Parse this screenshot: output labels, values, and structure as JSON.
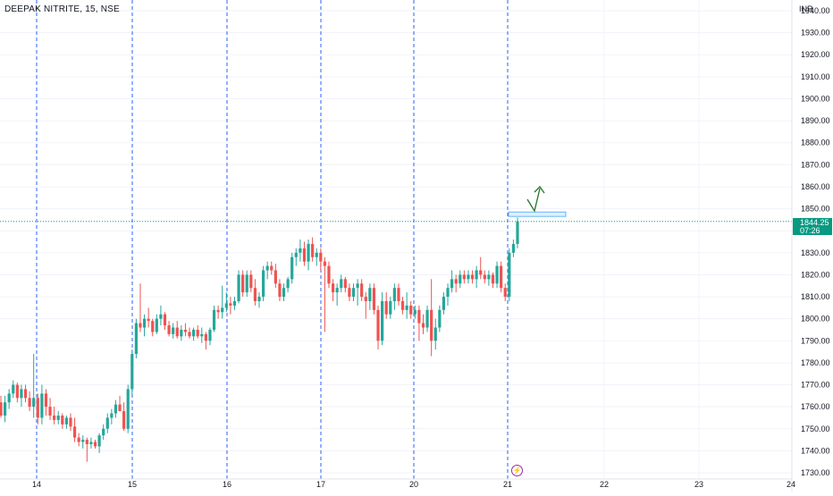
{
  "header": {
    "symbol": "DEEPAK NITRITE, 15, NSE",
    "currency": "INR"
  },
  "last_price": {
    "value": "1844.25",
    "countdown": "07:26"
  },
  "colors": {
    "up": "#26a69a",
    "down": "#ef5350",
    "accent": "#089981",
    "session_line": "#2962ff",
    "annotation": "#2e7d32"
  },
  "icons": [
    "lightning-icon"
  ],
  "chart_data": {
    "type": "candlestick",
    "title": "DEEPAK NITRITE, 15, NSE",
    "ylabel": "INR",
    "ylim": [
      1725,
      1945
    ],
    "y_ticks": [
      1730,
      1740,
      1750,
      1760,
      1770,
      1780,
      1790,
      1800,
      1810,
      1820,
      1830,
      1840,
      1850,
      1860,
      1870,
      1880,
      1890,
      1900,
      1910,
      1920,
      1930,
      1940
    ],
    "x_ticks": [
      "14",
      "15",
      "16",
      "17",
      "20",
      "21",
      "22",
      "23",
      "24"
    ],
    "session_breaks": [
      "14",
      "15",
      "16",
      "17",
      "20",
      "21"
    ],
    "last_price": 1844.25,
    "resistance_zone": [
      1846.5,
      1848.5
    ],
    "annotation": "green upward zig-zag arrow above resistance zone",
    "candles": [
      [
        1762,
        1765,
        1755,
        1756
      ],
      [
        1756,
        1765,
        1753,
        1762
      ],
      [
        1762,
        1768,
        1759,
        1766
      ],
      [
        1766,
        1772,
        1764,
        1770
      ],
      [
        1770,
        1771,
        1762,
        1764
      ],
      [
        1764,
        1770,
        1760,
        1768
      ],
      [
        1768,
        1770,
        1762,
        1764
      ],
      [
        1764,
        1767,
        1758,
        1760
      ],
      [
        1760,
        1784,
        1755,
        1764
      ],
      [
        1764,
        1766,
        1752,
        1755
      ],
      [
        1755,
        1770,
        1752,
        1766
      ],
      [
        1766,
        1768,
        1756,
        1760
      ],
      [
        1760,
        1764,
        1754,
        1756
      ],
      [
        1756,
        1760,
        1752,
        1754
      ],
      [
        1754,
        1758,
        1752,
        1756
      ],
      [
        1756,
        1757,
        1750,
        1752
      ],
      [
        1752,
        1756,
        1750,
        1755
      ],
      [
        1755,
        1757,
        1749,
        1751
      ],
      [
        1751,
        1755,
        1744,
        1746
      ],
      [
        1746,
        1748,
        1742,
        1744
      ],
      [
        1744,
        1747,
        1741,
        1745
      ],
      [
        1745,
        1746,
        1735,
        1743
      ],
      [
        1743,
        1746,
        1741,
        1744
      ],
      [
        1744,
        1745,
        1741,
        1742
      ],
      [
        1742,
        1748,
        1739,
        1747
      ],
      [
        1747,
        1752,
        1745,
        1750
      ],
      [
        1750,
        1757,
        1748,
        1755
      ],
      [
        1755,
        1759,
        1752,
        1757
      ],
      [
        1757,
        1763,
        1755,
        1761
      ],
      [
        1761,
        1765,
        1758,
        1758
      ],
      [
        1758,
        1762,
        1749,
        1750
      ],
      [
        1750,
        1770,
        1748,
        1768
      ],
      [
        1768,
        1786,
        1765,
        1784
      ],
      [
        1784,
        1800,
        1782,
        1798
      ],
      [
        1798,
        1816,
        1794,
        1796
      ],
      [
        1796,
        1802,
        1792,
        1800
      ],
      [
        1800,
        1805,
        1796,
        1799
      ],
      [
        1799,
        1800,
        1792,
        1794
      ],
      [
        1794,
        1802,
        1793,
        1800
      ],
      [
        1800,
        1806,
        1797,
        1802
      ],
      [
        1802,
        1803,
        1795,
        1797
      ],
      [
        1797,
        1799,
        1792,
        1793
      ],
      [
        1793,
        1798,
        1791,
        1796
      ],
      [
        1796,
        1799,
        1791,
        1792
      ],
      [
        1792,
        1797,
        1790,
        1795
      ],
      [
        1795,
        1798,
        1792,
        1794
      ],
      [
        1794,
        1796,
        1791,
        1792
      ],
      [
        1792,
        1796,
        1790,
        1795
      ],
      [
        1795,
        1797,
        1791,
        1792
      ],
      [
        1792,
        1796,
        1789,
        1793
      ],
      [
        1793,
        1794,
        1786,
        1790
      ],
      [
        1790,
        1796,
        1788,
        1795
      ],
      [
        1795,
        1806,
        1794,
        1804
      ],
      [
        1804,
        1806,
        1800,
        1803
      ],
      [
        1803,
        1815,
        1800,
        1805
      ],
      [
        1805,
        1812,
        1803,
        1807
      ],
      [
        1807,
        1810,
        1802,
        1806
      ],
      [
        1806,
        1810,
        1804,
        1808
      ],
      [
        1808,
        1822,
        1807,
        1820
      ],
      [
        1820,
        1822,
        1810,
        1812
      ],
      [
        1812,
        1822,
        1810,
        1820
      ],
      [
        1820,
        1822,
        1812,
        1814
      ],
      [
        1814,
        1818,
        1806,
        1808
      ],
      [
        1808,
        1812,
        1805,
        1810
      ],
      [
        1810,
        1824,
        1808,
        1822
      ],
      [
        1822,
        1826,
        1818,
        1824
      ],
      [
        1824,
        1826,
        1820,
        1822
      ],
      [
        1822,
        1825,
        1814,
        1816
      ],
      [
        1816,
        1818,
        1808,
        1810
      ],
      [
        1810,
        1816,
        1808,
        1814
      ],
      [
        1814,
        1819,
        1812,
        1818
      ],
      [
        1818,
        1830,
        1816,
        1828
      ],
      [
        1828,
        1832,
        1824,
        1830
      ],
      [
        1830,
        1836,
        1826,
        1832
      ],
      [
        1832,
        1835,
        1824,
        1826
      ],
      [
        1826,
        1836,
        1822,
        1834
      ],
      [
        1834,
        1837,
        1826,
        1828
      ],
      [
        1828,
        1832,
        1824,
        1830
      ],
      [
        1830,
        1832,
        1822,
        1826
      ],
      [
        1826,
        1828,
        1794,
        1824
      ],
      [
        1824,
        1826,
        1814,
        1816
      ],
      [
        1816,
        1818,
        1808,
        1812
      ],
      [
        1812,
        1816,
        1806,
        1814
      ],
      [
        1814,
        1820,
        1812,
        1818
      ],
      [
        1818,
        1819,
        1812,
        1814
      ],
      [
        1814,
        1816,
        1808,
        1810
      ],
      [
        1810,
        1816,
        1808,
        1814
      ],
      [
        1814,
        1818,
        1806,
        1816
      ],
      [
        1816,
        1818,
        1808,
        1810
      ],
      [
        1810,
        1812,
        1800,
        1808
      ],
      [
        1808,
        1816,
        1804,
        1814
      ],
      [
        1814,
        1816,
        1802,
        1804
      ],
      [
        1804,
        1806,
        1786,
        1790
      ],
      [
        1790,
        1812,
        1788,
        1808
      ],
      [
        1808,
        1812,
        1800,
        1802
      ],
      [
        1802,
        1810,
        1800,
        1808
      ],
      [
        1808,
        1816,
        1804,
        1814
      ],
      [
        1814,
        1816,
        1806,
        1808
      ],
      [
        1808,
        1810,
        1802,
        1804
      ],
      [
        1804,
        1812,
        1800,
        1806
      ],
      [
        1806,
        1808,
        1800,
        1802
      ],
      [
        1802,
        1806,
        1800,
        1804
      ],
      [
        1804,
        1806,
        1790,
        1798
      ],
      [
        1798,
        1802,
        1793,
        1796
      ],
      [
        1796,
        1806,
        1794,
        1804
      ],
      [
        1804,
        1818,
        1783,
        1790
      ],
      [
        1790,
        1800,
        1786,
        1796
      ],
      [
        1796,
        1806,
        1794,
        1804
      ],
      [
        1804,
        1812,
        1802,
        1810
      ],
      [
        1810,
        1816,
        1806,
        1814
      ],
      [
        1814,
        1822,
        1812,
        1818
      ],
      [
        1818,
        1820,
        1812,
        1816
      ],
      [
        1816,
        1822,
        1814,
        1820
      ],
      [
        1820,
        1822,
        1816,
        1818
      ],
      [
        1818,
        1822,
        1816,
        1820
      ],
      [
        1820,
        1822,
        1816,
        1818
      ],
      [
        1818,
        1824,
        1814,
        1822
      ],
      [
        1822,
        1828,
        1818,
        1820
      ],
      [
        1820,
        1822,
        1816,
        1818
      ],
      [
        1818,
        1822,
        1815,
        1820
      ],
      [
        1820,
        1821,
        1814,
        1816
      ],
      [
        1816,
        1826,
        1814,
        1824
      ],
      [
        1824,
        1826,
        1812,
        1814
      ],
      [
        1814,
        1816,
        1808,
        1810
      ],
      [
        1810,
        1832,
        1808,
        1830
      ],
      [
        1830,
        1836,
        1828,
        1834
      ],
      [
        1834,
        1846,
        1832,
        1844.25
      ]
    ]
  }
}
